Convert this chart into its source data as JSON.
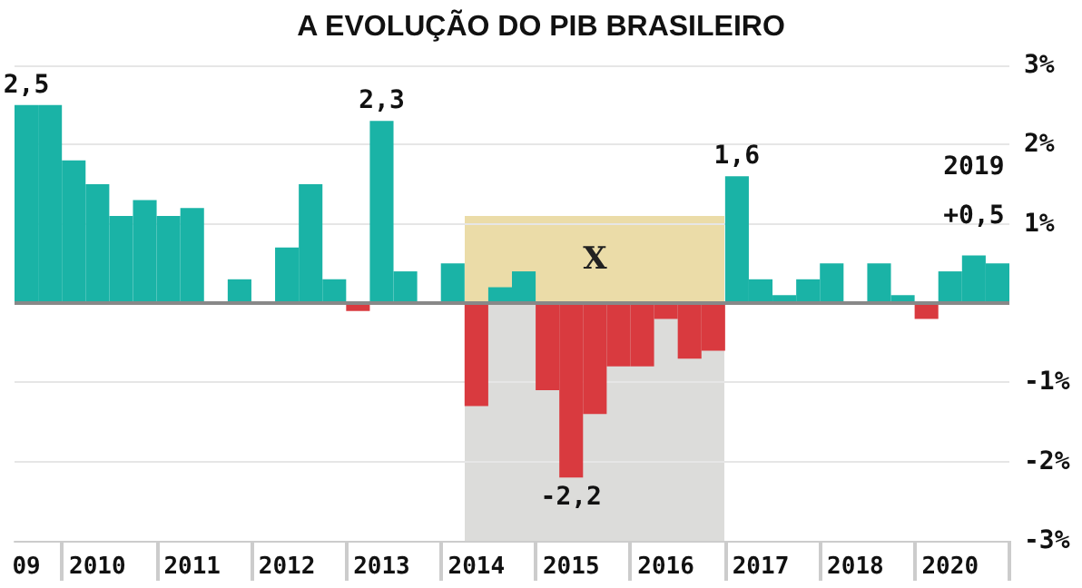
{
  "chart_data": {
    "type": "bar",
    "title": "A EVOLUÇÃO DO PIB BRASILEIRO",
    "categories": [
      "09",
      null,
      null,
      "2010",
      null,
      null,
      null,
      "2011",
      null,
      null,
      null,
      "2012",
      null,
      null,
      null,
      "2013",
      null,
      null,
      null,
      "2014",
      null,
      null,
      null,
      "2015",
      null,
      null,
      null,
      "2016",
      null,
      null,
      null,
      "2017",
      null,
      null,
      null,
      "2018",
      null,
      null,
      null,
      "2020",
      null,
      null
    ],
    "values": [
      2.5,
      2.5,
      1.8,
      1.5,
      1.1,
      1.3,
      1.1,
      1.2,
      0,
      0.3,
      0,
      0.7,
      1.5,
      0.3,
      -0.1,
      2.3,
      0.4,
      0,
      0.5,
      -1.3,
      0.2,
      0.4,
      -1.1,
      -2.2,
      -1.4,
      -0.8,
      -0.8,
      -0.2,
      -0.7,
      -0.6,
      1.6,
      0.3,
      0.1,
      0.3,
      0.5,
      0,
      0.5,
      0.1,
      -0.2,
      0.4,
      0.6,
      0.5
    ],
    "colors": [
      "#1ab3a6",
      "#1ab3a6",
      "#1ab3a6",
      "#1ab3a6",
      "#1ab3a6",
      "#1ab3a6",
      "#1ab3a6",
      "#1ab3a6",
      "#1ab3a6",
      "#1ab3a6",
      "#1ab3a6",
      "#1ab3a6",
      "#1ab3a6",
      "#1ab3a6",
      "#d93a3f",
      "#1ab3a6",
      "#1ab3a6",
      "#1ab3a6",
      "#1ab3a6",
      "#d93a3f",
      "#1ab3a6",
      "#1ab3a6",
      "#d93a3f",
      "#d93a3f",
      "#d93a3f",
      "#d93a3f",
      "#d93a3f",
      "#d93a3f",
      "#d93a3f",
      "#d93a3f",
      "#1ab3a6",
      "#1ab3a6",
      "#1ab3a6",
      "#1ab3a6",
      "#1ab3a6",
      "#1ab3a6",
      "#1ab3a6",
      "#1ab3a6",
      "#d93a3f",
      "#1ab3a6",
      "#1ab3a6",
      "#1ab3a6"
    ],
    "value_labels": [
      "2,5",
      null,
      null,
      null,
      null,
      null,
      null,
      null,
      null,
      null,
      null,
      null,
      null,
      null,
      null,
      "2,3",
      null,
      null,
      null,
      null,
      null,
      null,
      null,
      "-2,2",
      null,
      null,
      null,
      null,
      null,
      null,
      "1,6",
      null,
      null,
      null,
      null,
      null,
      null,
      null,
      null,
      null,
      null,
      null
    ],
    "ylim": [
      -3,
      3
    ],
    "yticks": [
      {
        "value": -3,
        "label": "-3%"
      },
      {
        "value": -2,
        "label": "-2%"
      },
      {
        "value": -1,
        "label": "-1%"
      },
      {
        "value": 0,
        "label": null
      },
      {
        "value": 1,
        "label": "1%"
      },
      {
        "value": 2,
        "label": "2%"
      },
      {
        "value": 3,
        "label": "3%"
      }
    ],
    "grid": "y",
    "annotations": [
      "2019",
      "+0,5",
      "X"
    ]
  }
}
